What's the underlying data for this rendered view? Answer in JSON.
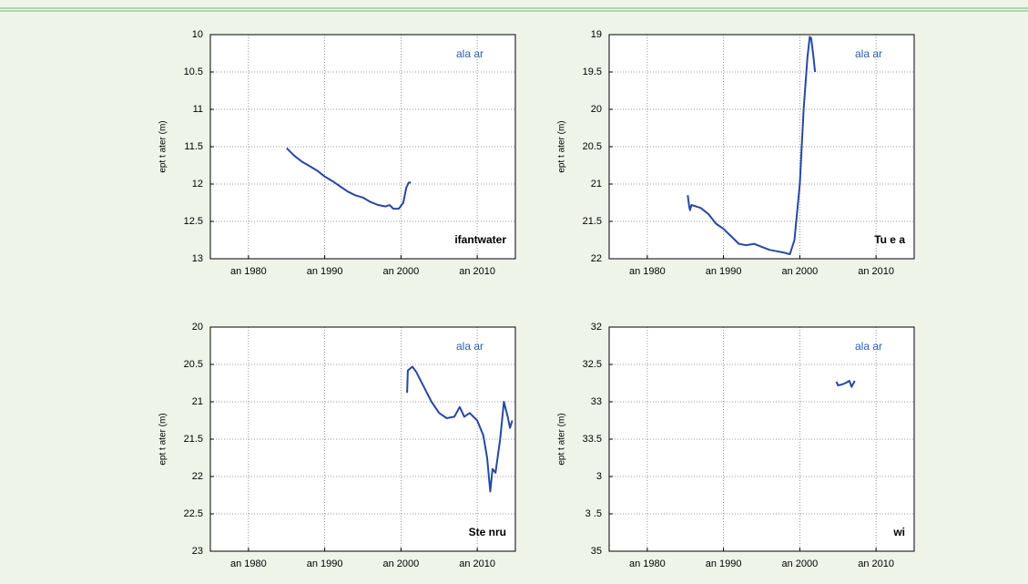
{
  "chart_data": [
    {
      "type": "line",
      "ylabel": "ept  t    ater (m)",
      "top_annotation": "ala  ar",
      "bottom_annotation": "ifantwater",
      "color": "#2748a0",
      "grid": true,
      "y_inverted": true,
      "xlim": [
        1975,
        2015
      ],
      "xticks": [
        {
          "value": 1980,
          "label": "an 1980"
        },
        {
          "value": 1990,
          "label": "an 1990"
        },
        {
          "value": 2000,
          "label": "an 2000"
        },
        {
          "value": 2010,
          "label": "an 2010"
        }
      ],
      "ylim": [
        10,
        13
      ],
      "yticks": [
        10,
        10.5,
        11,
        11.5,
        12,
        12.5,
        13
      ],
      "x": [
        1985,
        1986,
        1987,
        1988,
        1989,
        1990,
        1991,
        1992,
        1993,
        1994,
        1995,
        1996,
        1997,
        1998,
        1998.5,
        1999,
        1999.7,
        2000.3,
        2000.7,
        2001,
        2001.3
      ],
      "values": [
        11.52,
        11.62,
        11.7,
        11.76,
        11.82,
        11.9,
        11.96,
        12.03,
        12.1,
        12.15,
        12.18,
        12.24,
        12.28,
        12.3,
        12.28,
        12.33,
        12.33,
        12.25,
        12.05,
        11.98,
        11.98
      ]
    },
    {
      "type": "line",
      "ylabel": "ept  t    ater (m)",
      "top_annotation": "ala  ar",
      "bottom_annotation": "Tu  e a",
      "color": "#2748a0",
      "grid": true,
      "y_inverted": true,
      "xlim": [
        1975,
        2015
      ],
      "xticks": [
        {
          "value": 1980,
          "label": "an 1980"
        },
        {
          "value": 1990,
          "label": "an 1990"
        },
        {
          "value": 2000,
          "label": "an 2000"
        },
        {
          "value": 2010,
          "label": "an 2010"
        }
      ],
      "ylim": [
        19,
        22
      ],
      "yticks": [
        19,
        19.5,
        20,
        20.5,
        21,
        21.5,
        22
      ],
      "x": [
        1985.3,
        1985.5,
        1985.6,
        1985.8,
        1987,
        1988,
        1989,
        1990,
        1991,
        1992,
        1993,
        1994,
        1995,
        1996,
        1997,
        1998,
        1998.7,
        1999.3,
        2000,
        2000.5,
        2001,
        2001.3,
        2001.5,
        2001.8,
        2002
      ],
      "values": [
        21.15,
        21.3,
        21.35,
        21.28,
        21.32,
        21.4,
        21.53,
        21.6,
        21.7,
        21.8,
        21.82,
        21.8,
        21.84,
        21.88,
        21.9,
        21.92,
        21.94,
        21.75,
        21,
        20,
        19.3,
        19.03,
        19.05,
        19.3,
        19.5
      ]
    },
    {
      "type": "line",
      "ylabel": "ept  t    ater (m)",
      "top_annotation": "ala  ar",
      "bottom_annotation": "Ste  nru",
      "color": "#2748a0",
      "grid": true,
      "y_inverted": true,
      "xlim": [
        1975,
        2015
      ],
      "xticks": [
        {
          "value": 1980,
          "label": "an 1980"
        },
        {
          "value": 1990,
          "label": "an 1990"
        },
        {
          "value": 2000,
          "label": "an 2000"
        },
        {
          "value": 2010,
          "label": "an 2010"
        }
      ],
      "ylim": [
        20,
        23
      ],
      "yticks": [
        20,
        20.5,
        21,
        21.5,
        22,
        22.5,
        23
      ],
      "x": [
        2000.8,
        2000.9,
        2001.5,
        2002,
        2003,
        2004,
        2005,
        2006,
        2007,
        2007.7,
        2008.3,
        2009,
        2010,
        2010.8,
        2011.3,
        2011.7,
        2012,
        2012.4,
        2013,
        2013.5,
        2014,
        2014.3,
        2014.6
      ],
      "values": [
        20.88,
        20.58,
        20.53,
        20.6,
        20.8,
        21,
        21.15,
        21.22,
        21.2,
        21.07,
        21.2,
        21.15,
        21.25,
        21.45,
        21.75,
        22.2,
        21.9,
        21.95,
        21.5,
        21.0,
        21.2,
        21.35,
        21.25
      ]
    },
    {
      "type": "line",
      "ylabel": "ept  t    ater (m)",
      "top_annotation": "ala  ar",
      "bottom_annotation": "wi",
      "color": "#2748a0",
      "grid": true,
      "y_inverted": true,
      "xlim": [
        1975,
        2015
      ],
      "xticks": [
        {
          "value": 1980,
          "label": "an 1980"
        },
        {
          "value": 1990,
          "label": "an 1990"
        },
        {
          "value": 2000,
          "label": "an 2000"
        },
        {
          "value": 2010,
          "label": "an 2010"
        }
      ],
      "ylim": [
        32,
        35
      ],
      "yticks": [
        32,
        32.5,
        33,
        33.5,
        {
          "value": 34,
          "label": "3"
        },
        {
          "value": 34.5,
          "label": "3 .5"
        },
        35
      ],
      "x": [
        2004.8,
        2005,
        2005.5,
        2006,
        2006.5,
        2006.8,
        2007.2
      ],
      "values": [
        32.73,
        32.78,
        32.77,
        32.75,
        32.72,
        32.8,
        32.72
      ]
    }
  ]
}
